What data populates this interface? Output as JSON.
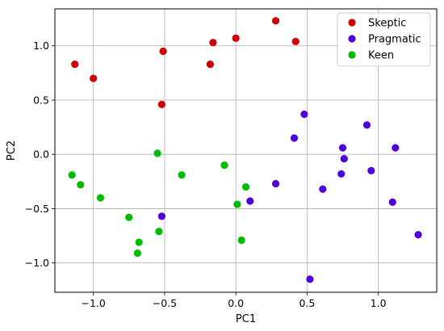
{
  "chart_data": {
    "type": "scatter",
    "xlabel": "PC1",
    "ylabel": "PC2",
    "xlim": [
      -1.27,
      1.41
    ],
    "ylim": [
      -1.27,
      1.34
    ],
    "xticks": [
      -1.0,
      -0.5,
      0.0,
      0.5,
      1.0
    ],
    "xtick_labels": [
      "−1.0",
      "−0.5",
      "0.0",
      "0.5",
      "1.0"
    ],
    "yticks": [
      -1.0,
      -0.5,
      0.0,
      0.5,
      1.0
    ],
    "ytick_labels": [
      "−1.0",
      "−0.5",
      "0.0",
      "0.5",
      "1.0"
    ],
    "grid": true,
    "legend_position": "top-right",
    "series": [
      {
        "name": "Skeptic",
        "color": "#cc0000",
        "points": [
          [
            -1.13,
            0.83
          ],
          [
            -1.0,
            0.7
          ],
          [
            -0.52,
            0.46
          ],
          [
            -0.51,
            0.95
          ],
          [
            -0.18,
            0.83
          ],
          [
            -0.16,
            1.03
          ],
          [
            0.0,
            1.07
          ],
          [
            0.28,
            1.23
          ],
          [
            0.42,
            1.04
          ]
        ]
      },
      {
        "name": "Pragmatic",
        "color": "#5000d8",
        "points": [
          [
            -0.52,
            -0.57
          ],
          [
            0.1,
            -0.43
          ],
          [
            0.28,
            -0.27
          ],
          [
            0.41,
            0.15
          ],
          [
            0.48,
            0.37
          ],
          [
            0.52,
            -1.15
          ],
          [
            0.61,
            -0.32
          ],
          [
            0.74,
            -0.18
          ],
          [
            0.75,
            0.06
          ],
          [
            0.76,
            -0.04
          ],
          [
            0.92,
            0.27
          ],
          [
            0.95,
            -0.15
          ],
          [
            1.1,
            -0.44
          ],
          [
            1.12,
            0.06
          ],
          [
            1.28,
            -0.74
          ]
        ]
      },
      {
        "name": "Keen",
        "color": "#00bb00",
        "points": [
          [
            -1.15,
            -0.19
          ],
          [
            -1.09,
            -0.28
          ],
          [
            -0.95,
            -0.4
          ],
          [
            -0.75,
            -0.58
          ],
          [
            -0.68,
            -0.81
          ],
          [
            -0.69,
            -0.91
          ],
          [
            -0.55,
            0.01
          ],
          [
            -0.54,
            -0.71
          ],
          [
            -0.38,
            -0.19
          ],
          [
            -0.08,
            -0.1
          ],
          [
            0.01,
            -0.46
          ],
          [
            0.04,
            -0.79
          ],
          [
            0.07,
            -0.3
          ]
        ]
      }
    ]
  }
}
